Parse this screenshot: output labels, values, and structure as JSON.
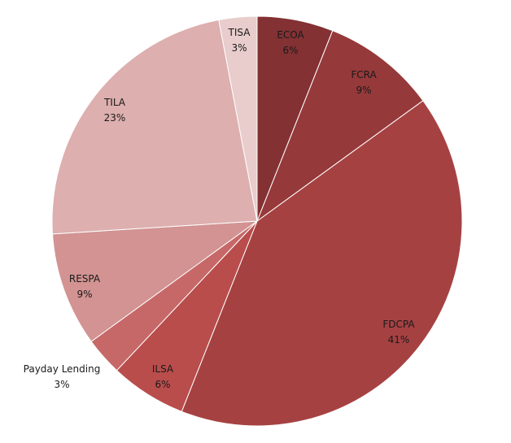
{
  "chart_data": {
    "type": "pie",
    "slices": [
      {
        "label": "ECOA",
        "value": 6,
        "value_label": "6%",
        "color": "#833133"
      },
      {
        "label": "FCRA",
        "value": 9,
        "value_label": "9%",
        "color": "#96393a"
      },
      {
        "label": "FDCPA",
        "value": 41,
        "value_label": "41%",
        "color": "#a64142"
      },
      {
        "label": "ILSA",
        "value": 6,
        "value_label": "6%",
        "color": "#b94d4c"
      },
      {
        "label": "Payday Lending",
        "value": 3,
        "value_label": "3%",
        "color": "#c76868"
      },
      {
        "label": "RESPA",
        "value": 9,
        "value_label": "9%",
        "color": "#d29392"
      },
      {
        "label": "TILA",
        "value": 23,
        "value_label": "23%",
        "color": "#ddafae"
      },
      {
        "label": "TISA",
        "value": 3,
        "value_label": "3%",
        "color": "#e8cdcc"
      }
    ],
    "start_angle": "12 o'clock",
    "direction": "clockwise",
    "legend": "none",
    "labels": "category name and percentage"
  }
}
